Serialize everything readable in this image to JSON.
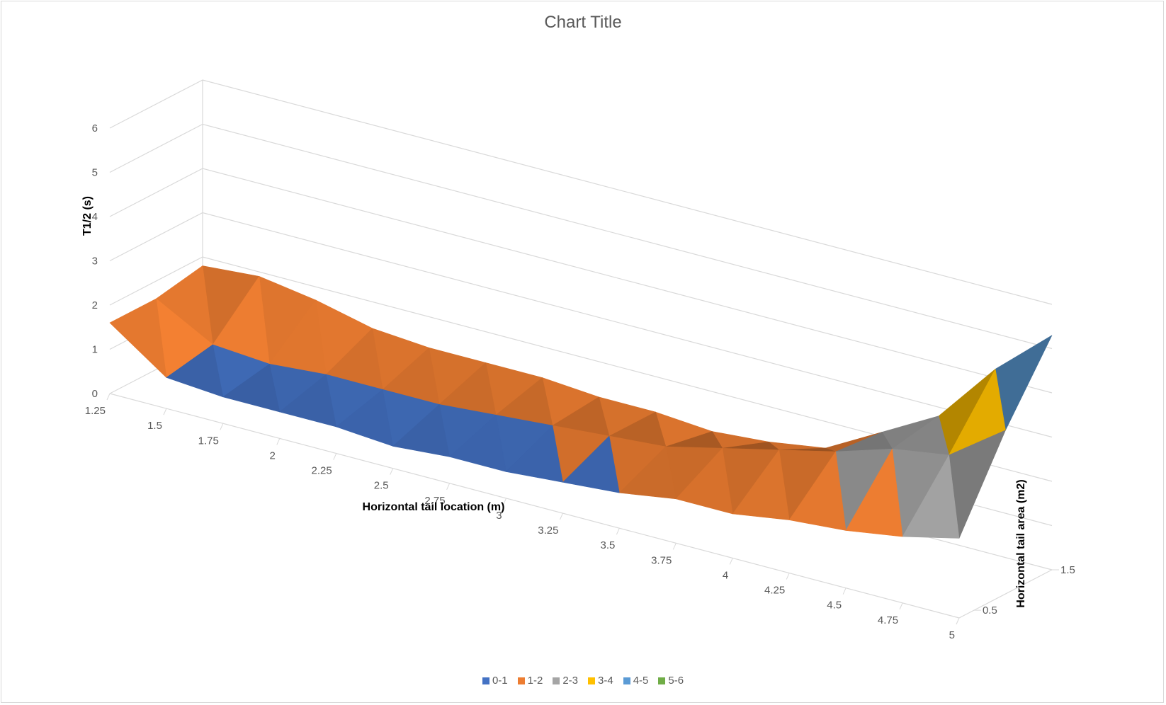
{
  "chart_data": {
    "type": "surface",
    "title": "Chart Title",
    "xlabel": "Horizontal tail location (m)",
    "ylabel": "Horizontal tail area (m2)",
    "zlabel": "T1/2 (s)",
    "x_categories": [
      "1.25",
      "1.5",
      "1.75",
      "2",
      "2.25",
      "2.5",
      "2.75",
      "3",
      "3.25",
      "3.5",
      "3.75",
      "4",
      "4.25",
      "4.5",
      "4.75",
      "5"
    ],
    "y_ticks": [
      "0.5",
      "1.5"
    ],
    "z_ticks": [
      "0",
      "1",
      "2",
      "3",
      "4",
      "5",
      "6"
    ],
    "zlim": [
      0,
      6
    ],
    "legend": [
      {
        "label": "0-1",
        "color": "#4472c4"
      },
      {
        "label": "1-2",
        "color": "#ed7d31"
      },
      {
        "label": "2-3",
        "color": "#a5a5a5"
      },
      {
        "label": "3-4",
        "color": "#ffc000"
      },
      {
        "label": "4-5",
        "color": "#5b9bd5"
      },
      {
        "label": "5-6",
        "color": "#70ad47"
      }
    ],
    "surface_rows": [
      {
        "y": "0.5",
        "values": [
          1.6,
          0.7,
          0.6,
          0.6,
          0.6,
          0.5,
          0.6,
          0.6,
          0.7,
          0.8,
          1.0,
          1.0,
          1.2,
          1.3,
          1.5,
          1.8
        ]
      },
      {
        "y": "1.0",
        "values": [
          1.6,
          0.9,
          0.8,
          0.9,
          0.9,
          0.9,
          1.0,
          1.1,
          1.2,
          1.3,
          1.6,
          1.9,
          2.2,
          2.6,
          2.8,
          3.7
        ]
      },
      {
        "y": "1.5",
        "values": [
          1.8,
          1.9,
          1.7,
          1.4,
          1.3,
          1.3,
          1.3,
          1.2,
          1.2,
          1.1,
          1.2,
          1.4,
          2.1,
          2.8,
          4.2,
          5.3
        ]
      }
    ]
  }
}
